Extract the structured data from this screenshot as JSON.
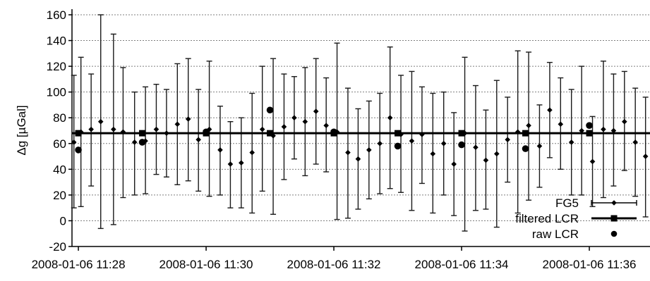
{
  "chart_data": {
    "type": "scatter",
    "title": "",
    "ylabel": "Δg [µGal]",
    "xlabel": "",
    "ylim": [
      -20,
      160
    ],
    "yticks": [
      -20,
      0,
      20,
      40,
      60,
      80,
      100,
      120,
      140,
      160
    ],
    "grid": true,
    "legend_position": "bottom-right",
    "xlim_minutes": [
      27.9,
      36.95
    ],
    "xticks": [
      {
        "minute": 28,
        "label": "2008-01-06 11:28"
      },
      {
        "minute": 30,
        "label": "2008-01-06 11:30"
      },
      {
        "minute": 32,
        "label": "2008-01-06 11:32"
      },
      {
        "minute": 34,
        "label": "2008-01-06 11:34"
      },
      {
        "minute": 36,
        "label": "2008-01-06 11:36"
      }
    ],
    "series": [
      {
        "name": "FG5",
        "marker": "diamond",
        "points": [
          {
            "t": 27.93,
            "y": 61,
            "lo": 10,
            "hi": 113
          },
          {
            "t": 28.04,
            "y": 69,
            "lo": 11,
            "hi": 127
          },
          {
            "t": 28.2,
            "y": 71,
            "lo": 27,
            "hi": 114
          },
          {
            "t": 28.35,
            "y": 77,
            "lo": -6,
            "hi": 160
          },
          {
            "t": 28.55,
            "y": 71,
            "lo": -3,
            "hi": 145
          },
          {
            "t": 28.7,
            "y": 69,
            "lo": 18,
            "hi": 119
          },
          {
            "t": 28.88,
            "y": 61,
            "lo": 20,
            "hi": 100
          },
          {
            "t": 29.05,
            "y": 62,
            "lo": 21,
            "hi": 104
          },
          {
            "t": 29.22,
            "y": 71,
            "lo": 36,
            "hi": 106
          },
          {
            "t": 29.38,
            "y": 68,
            "lo": 34,
            "hi": 102
          },
          {
            "t": 29.55,
            "y": 75,
            "lo": 28,
            "hi": 122
          },
          {
            "t": 29.72,
            "y": 79,
            "lo": 31,
            "hi": 126
          },
          {
            "t": 29.88,
            "y": 63,
            "lo": 23,
            "hi": 102
          },
          {
            "t": 30.05,
            "y": 71,
            "lo": 19,
            "hi": 124
          },
          {
            "t": 30.22,
            "y": 55,
            "lo": 20,
            "hi": 89
          },
          {
            "t": 30.38,
            "y": 44,
            "lo": 10,
            "hi": 77
          },
          {
            "t": 30.55,
            "y": 45,
            "lo": 10,
            "hi": 80
          },
          {
            "t": 30.72,
            "y": 53,
            "lo": 6,
            "hi": 99
          },
          {
            "t": 30.88,
            "y": 71,
            "lo": 23,
            "hi": 120
          },
          {
            "t": 31.05,
            "y": 66,
            "lo": 5,
            "hi": 126
          },
          {
            "t": 31.22,
            "y": 73,
            "lo": 32,
            "hi": 114
          },
          {
            "t": 31.38,
            "y": 80,
            "lo": 48,
            "hi": 112
          },
          {
            "t": 31.55,
            "y": 77,
            "lo": 35,
            "hi": 119
          },
          {
            "t": 31.72,
            "y": 85,
            "lo": 44,
            "hi": 126
          },
          {
            "t": 31.88,
            "y": 74,
            "lo": 38,
            "hi": 111
          },
          {
            "t": 32.05,
            "y": 69,
            "lo": 1,
            "hi": 138
          },
          {
            "t": 32.22,
            "y": 53,
            "lo": 2,
            "hi": 103
          },
          {
            "t": 32.38,
            "y": 48,
            "lo": 9,
            "hi": 87
          },
          {
            "t": 32.55,
            "y": 55,
            "lo": 17,
            "hi": 93
          },
          {
            "t": 32.72,
            "y": 60,
            "lo": 21,
            "hi": 99
          },
          {
            "t": 32.88,
            "y": 80,
            "lo": 25,
            "hi": 135
          },
          {
            "t": 33.05,
            "y": 67,
            "lo": 22,
            "hi": 113
          },
          {
            "t": 33.22,
            "y": 62,
            "lo": 8,
            "hi": 116
          },
          {
            "t": 33.38,
            "y": 67,
            "lo": 29,
            "hi": 104
          },
          {
            "t": 33.55,
            "y": 52,
            "lo": 6,
            "hi": 99
          },
          {
            "t": 33.72,
            "y": 60,
            "lo": 20,
            "hi": 100
          },
          {
            "t": 33.88,
            "y": 44,
            "lo": 4,
            "hi": 84
          },
          {
            "t": 34.05,
            "y": 68,
            "lo": -8,
            "hi": 127
          },
          {
            "t": 34.22,
            "y": 57,
            "lo": 8,
            "hi": 105
          },
          {
            "t": 34.38,
            "y": 47,
            "lo": 9,
            "hi": 86
          },
          {
            "t": 34.55,
            "y": 52,
            "lo": -5,
            "hi": 109
          },
          {
            "t": 34.72,
            "y": 63,
            "lo": 30,
            "hi": 96
          },
          {
            "t": 34.88,
            "y": 69,
            "lo": 6,
            "hi": 132
          },
          {
            "t": 35.05,
            "y": 74,
            "lo": 16,
            "hi": 131
          },
          {
            "t": 35.22,
            "y": 58,
            "lo": 26,
            "hi": 90
          },
          {
            "t": 35.38,
            "y": 86,
            "lo": 49,
            "hi": 123
          },
          {
            "t": 35.55,
            "y": 75,
            "lo": 40,
            "hi": 111
          },
          {
            "t": 35.72,
            "y": 61,
            "lo": 20,
            "hi": 102
          },
          {
            "t": 35.88,
            "y": 70,
            "lo": 20,
            "hi": 120
          },
          {
            "t": 36.05,
            "y": 46,
            "lo": 11,
            "hi": 81
          },
          {
            "t": 36.22,
            "y": 71,
            "lo": 18,
            "hi": 124
          },
          {
            "t": 36.38,
            "y": 70,
            "lo": 27,
            "hi": 114
          },
          {
            "t": 36.55,
            "y": 77,
            "lo": 39,
            "hi": 116
          },
          {
            "t": 36.72,
            "y": 61,
            "lo": 19,
            "hi": 103
          },
          {
            "t": 36.88,
            "y": 50,
            "lo": 3,
            "hi": 96
          }
        ]
      },
      {
        "name": "filtered LCR",
        "marker": "square",
        "mean": 68,
        "points": [
          {
            "t": 28.0,
            "y": 68
          },
          {
            "t": 29.0,
            "y": 68
          },
          {
            "t": 30.0,
            "y": 68
          },
          {
            "t": 31.0,
            "y": 68
          },
          {
            "t": 32.0,
            "y": 68
          },
          {
            "t": 33.0,
            "y": 68
          },
          {
            "t": 34.0,
            "y": 68
          },
          {
            "t": 35.0,
            "y": 68
          },
          {
            "t": 36.0,
            "y": 68
          }
        ]
      },
      {
        "name": "raw LCR",
        "marker": "circle",
        "points": [
          {
            "t": 28.0,
            "y": 55
          },
          {
            "t": 29.0,
            "y": 61
          },
          {
            "t": 30.0,
            "y": 69
          },
          {
            "t": 31.0,
            "y": 86
          },
          {
            "t": 32.0,
            "y": 69
          },
          {
            "t": 33.0,
            "y": 58
          },
          {
            "t": 34.0,
            "y": 59
          },
          {
            "t": 35.0,
            "y": 56
          },
          {
            "t": 36.0,
            "y": 74
          }
        ]
      }
    ]
  }
}
